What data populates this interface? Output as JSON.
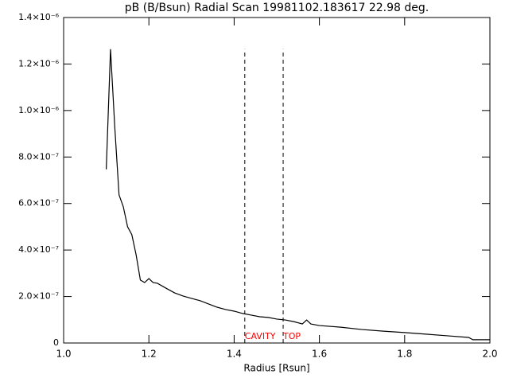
{
  "chart_data": {
    "type": "line",
    "title": "pB (B/Bsun) Radial Scan 19981102.183617 22.98 deg.",
    "x_label": "Radius [Rsun]",
    "x": [
      1.1,
      1.11,
      1.12,
      1.13,
      1.14,
      1.15,
      1.16,
      1.17,
      1.18,
      1.19,
      1.2,
      1.21,
      1.22,
      1.24,
      1.26,
      1.28,
      1.3,
      1.32,
      1.34,
      1.36,
      1.38,
      1.4,
      1.42,
      1.44,
      1.46,
      1.48,
      1.5,
      1.52,
      1.54,
      1.56,
      1.57,
      1.58,
      1.6,
      1.65,
      1.7,
      1.75,
      1.8,
      1.85,
      1.9,
      1.95,
      1.96,
      2.0
    ],
    "series": [
      {
        "color": "#000000",
        "values": [
          7.47e-07,
          1.264e-06,
          9.28e-07,
          6.37e-07,
          5.86e-07,
          5e-07,
          4.66e-07,
          3.8e-07,
          2.71e-07,
          2.6e-07,
          2.77e-07,
          2.6e-07,
          2.57e-07,
          2.36e-07,
          2.16e-07,
          2.02e-07,
          1.92e-07,
          1.82e-07,
          1.68e-07,
          1.54e-07,
          1.44e-07,
          1.37e-07,
          1.27e-07,
          1.2e-07,
          1.13e-07,
          1.1e-07,
          1.03e-07,
          9.9e-08,
          9.2e-08,
          8.2e-08,
          9.9e-08,
          8.2e-08,
          7.5e-08,
          6.8e-08,
          5.8e-08,
          5.1e-08,
          4.5e-08,
          3.8e-08,
          3.1e-08,
          2.4e-08,
          1.4e-08,
          1.4e-08
        ]
      }
    ],
    "markers": [
      {
        "x": 1.425,
        "label": "CAVITY",
        "color": "#ff0000"
      },
      {
        "x": 1.515,
        "label": "TOP",
        "color": "#ff0000"
      }
    ],
    "xlim": [
      1.0,
      2.0
    ],
    "xticks": [
      {
        "value": 1.0,
        "label": "1.0"
      },
      1.2,
      1.4,
      1.6,
      1.8,
      {
        "value": 2.0,
        "label": "2.0"
      }
    ],
    "ylim": [
      0,
      1.4e-06
    ],
    "yticks": [
      0,
      {
        "value": 2e-07,
        "label": "2.0×10⁻⁷"
      },
      {
        "value": 4e-07,
        "label": "4.0×10⁻⁷"
      },
      {
        "value": 6e-07,
        "label": "6.0×10⁻⁷"
      },
      {
        "value": 8e-07,
        "label": "8.0×10⁻⁷"
      },
      {
        "value": 1e-06,
        "label": "1.0×10⁻⁶"
      },
      {
        "value": 1.2e-06,
        "label": "1.2×10⁻⁶"
      },
      {
        "value": 1.4e-06,
        "label": "1.4×10⁻⁶"
      }
    ]
  }
}
